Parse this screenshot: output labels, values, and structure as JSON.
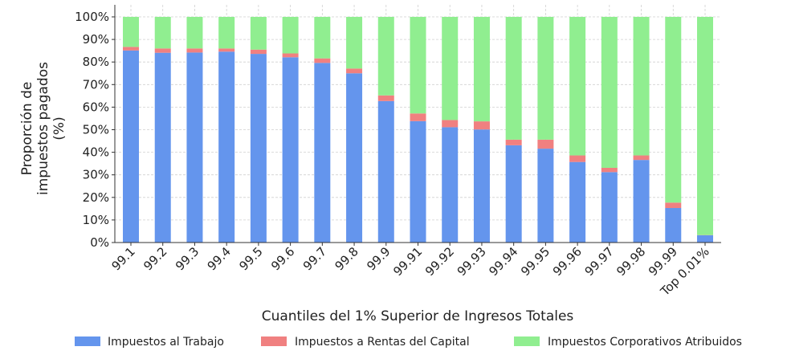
{
  "chart_data": {
    "type": "bar",
    "stacked": true,
    "title": "",
    "xlabel": "Cuantiles del 1% Superior de Ingresos Totales",
    "ylabel_lines": [
      "Proporción de",
      "impuestos pagados",
      "(%)"
    ],
    "ylim": [
      0,
      100
    ],
    "yticks": [
      "0%",
      "10%",
      "20%",
      "30%",
      "40%",
      "50%",
      "60%",
      "70%",
      "80%",
      "90%",
      "100%"
    ],
    "grid": true,
    "legend_position": "bottom",
    "categories": [
      "99.1",
      "99.2",
      "99.3",
      "99.4",
      "99.5",
      "99.6",
      "99.7",
      "99.8",
      "99.9",
      "99.91",
      "99.92",
      "99.93",
      "99.94",
      "99.95",
      "99.96",
      "99.97",
      "99.98",
      "99.99",
      "Top 0.01%"
    ],
    "series": [
      {
        "name": "Impuestos al Trabajo",
        "color": "#6495ED",
        "values": [
          85.1,
          84.1,
          84.2,
          84.6,
          83.6,
          82.1,
          79.6,
          75.0,
          62.7,
          53.8,
          51.1,
          50.1,
          43.1,
          41.6,
          35.7,
          31.2,
          36.6,
          15.3,
          3.2
        ]
      },
      {
        "name": "Impuestos a Rentas del Capital",
        "color": "#F08080",
        "values": [
          1.6,
          1.9,
          1.8,
          1.4,
          1.9,
          1.7,
          2.0,
          2.1,
          2.5,
          3.4,
          3.2,
          3.6,
          2.5,
          4.0,
          2.9,
          1.9,
          2.0,
          2.4,
          0.1
        ]
      },
      {
        "name": "Impuestos Corporativos Atribuidos",
        "color": "#90EE90",
        "values": [
          13.3,
          14.0,
          14.0,
          14.0,
          14.5,
          16.2,
          18.4,
          22.9,
          34.8,
          42.8,
          45.7,
          46.3,
          54.4,
          54.4,
          61.4,
          66.9,
          61.4,
          82.3,
          96.7
        ]
      }
    ]
  }
}
